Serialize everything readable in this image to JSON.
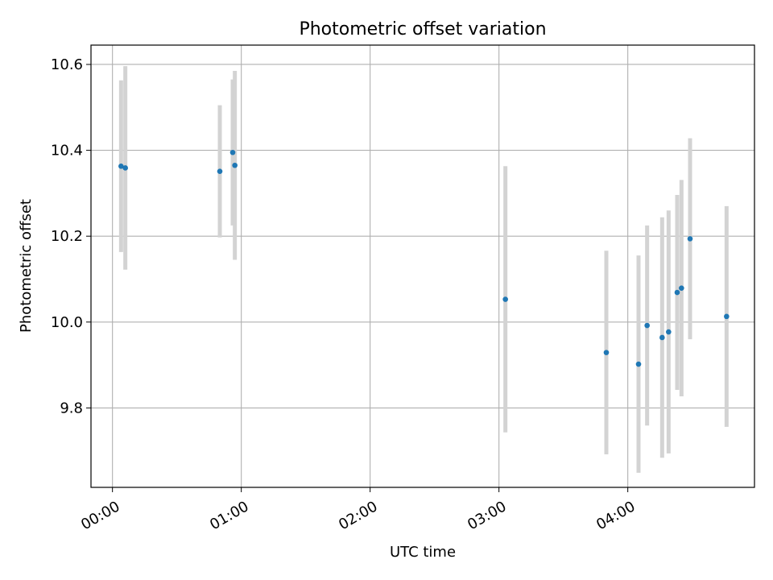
{
  "chart_data": {
    "type": "scatter",
    "title": "Photometric offset variation",
    "xlabel": "UTC time",
    "ylabel": "Photometric offset",
    "x_unit": "UTC hh:mm",
    "xlim": [
      "-00:10",
      "04:59"
    ],
    "ylim": [
      9.615,
      10.645
    ],
    "grid": true,
    "x_ticks": [
      "00:00",
      "01:00",
      "02:00",
      "03:00",
      "04:00"
    ],
    "y_ticks": [
      "9.8",
      "10.0",
      "10.2",
      "10.4",
      "10.6"
    ],
    "marker_color": "#1f77b4",
    "errorbar_color": "#d3d3d3",
    "points": [
      {
        "x": "00:04",
        "y": 10.363,
        "err": 0.2
      },
      {
        "x": "00:06",
        "y": 10.359,
        "err": 0.237
      },
      {
        "x": "00:50",
        "y": 10.351,
        "err": 0.154
      },
      {
        "x": "00:56",
        "y": 10.395,
        "err": 0.17
      },
      {
        "x": "00:57",
        "y": 10.365,
        "err": 0.22
      },
      {
        "x": "03:03",
        "y": 10.053,
        "err": 0.31
      },
      {
        "x": "03:50",
        "y": 9.929,
        "err": 0.237
      },
      {
        "x": "04:05",
        "y": 9.902,
        "err": 0.253
      },
      {
        "x": "04:09",
        "y": 9.992,
        "err": 0.233
      },
      {
        "x": "04:16",
        "y": 9.964,
        "err": 0.28
      },
      {
        "x": "04:19",
        "y": 9.977,
        "err": 0.283
      },
      {
        "x": "04:23",
        "y": 10.069,
        "err": 0.227
      },
      {
        "x": "04:25",
        "y": 10.079,
        "err": 0.252
      },
      {
        "x": "04:29",
        "y": 10.194,
        "err": 0.234
      },
      {
        "x": "04:46",
        "y": 10.013,
        "err": 0.257
      }
    ]
  }
}
